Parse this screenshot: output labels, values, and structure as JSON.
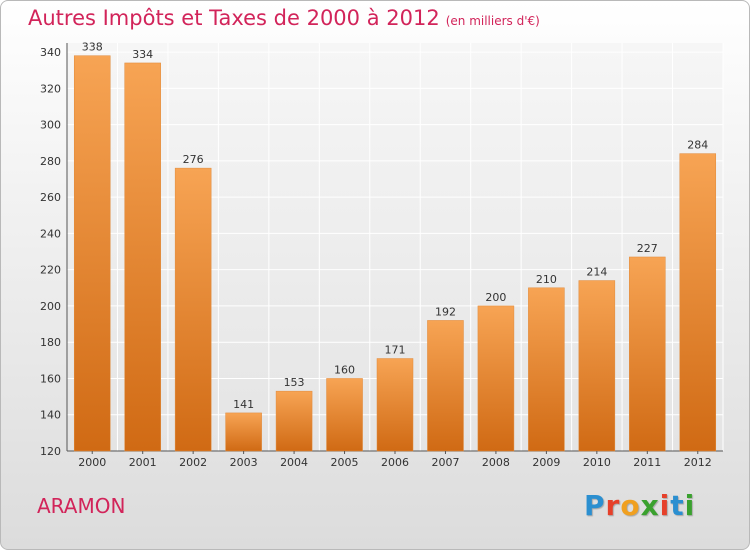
{
  "title": "Autres Impôts et Taxes de 2000 à 2012",
  "subtitle": "(en milliers d'€)",
  "commune": "ARAMON",
  "logo": {
    "text": "Proxiti",
    "letters": [
      "P",
      "r",
      "o",
      "x",
      "i",
      "t",
      "i"
    ],
    "colors": [
      "#2b8fd0",
      "#e6402a",
      "#f0a020",
      "#3aa12e",
      "#e6402a",
      "#2b8fd0",
      "#3aa12e"
    ]
  },
  "colors": {
    "title": "#d2245a",
    "bar_top": "#f7a454",
    "bar_bottom": "#d06a14"
  },
  "chart_data": {
    "type": "bar",
    "title": "Autres Impôts et Taxes de 2000 à 2012",
    "subtitle": "(en milliers d'€)",
    "categories": [
      "2000",
      "2001",
      "2002",
      "2003",
      "2004",
      "2005",
      "2006",
      "2007",
      "2008",
      "2009",
      "2010",
      "2011",
      "2012"
    ],
    "values": [
      338,
      334,
      276,
      141,
      153,
      160,
      171,
      192,
      200,
      210,
      214,
      227,
      284
    ],
    "ylim": [
      120,
      345
    ],
    "yticks": [
      120,
      140,
      160,
      180,
      200,
      220,
      240,
      260,
      280,
      300,
      320,
      340
    ],
    "grid": true,
    "data_labels": true
  }
}
